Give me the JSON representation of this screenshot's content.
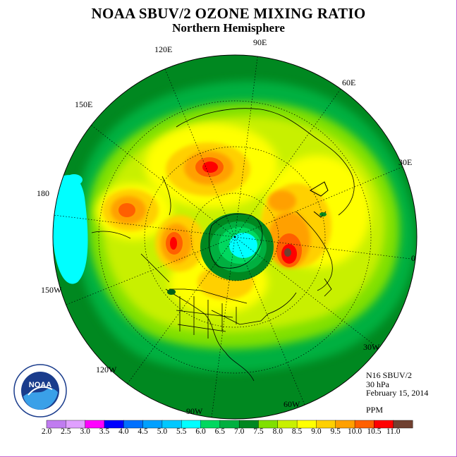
{
  "title": "NOAA SBUV/2 OZONE MIXING RATIO",
  "subtitle": "Northern Hemisphere",
  "longitude_labels": {
    "lon_90e": "90E",
    "lon_120e": "120E",
    "lon_60e": "60E",
    "lon_150e": "150E",
    "lon_30e": "30E",
    "lon_180": "180",
    "lon_0": "0",
    "lon_150w": "150W",
    "lon_30w": "30W",
    "lon_120w": "120W",
    "lon_60w": "60W",
    "lon_90w": "90W"
  },
  "info": {
    "instrument": "N16 SBUV/2",
    "level": "30 hPa",
    "date": "February 15, 2014",
    "units": "PPM"
  },
  "logo_text": "NOAA",
  "colorbar": {
    "labels": [
      "2.0",
      "2.5",
      "3.0",
      "3.5",
      "4.0",
      "4.5",
      "5.0",
      "5.5",
      "6.0",
      "6.5",
      "7.0",
      "7.5",
      "8.0",
      "8.5",
      "9.0",
      "9.5",
      "10.0",
      "10.5",
      "11.0"
    ],
    "colors": [
      "#c07cf0",
      "#e0a0ff",
      "#ff00ff",
      "#0000ff",
      "#0070ff",
      "#00a0ff",
      "#00c8ff",
      "#00ffff",
      "#00d860",
      "#00b040",
      "#008820",
      "#80e000",
      "#c8f000",
      "#ffff00",
      "#ffd000",
      "#ffa000",
      "#ff6000",
      "#ff0000",
      "#704030"
    ]
  },
  "colors": {
    "frame_border": "#cc66cc",
    "outer_band": "#008820",
    "ring": "#00b040"
  }
}
